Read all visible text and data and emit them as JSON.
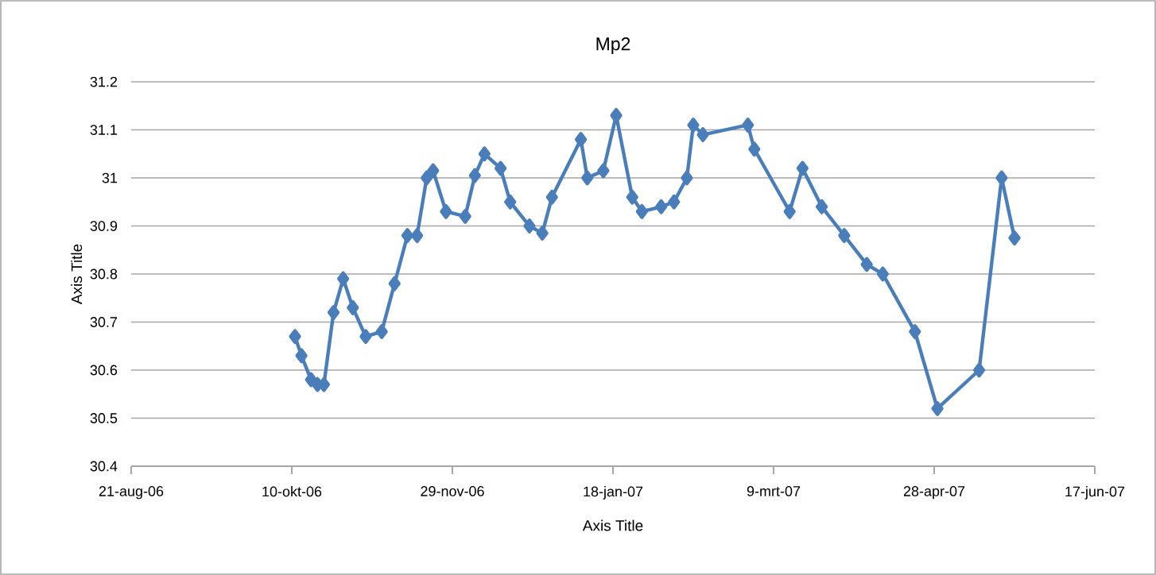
{
  "chart_data": {
    "type": "line",
    "title": "Mp2",
    "xlabel": "Axis Title",
    "ylabel": "Axis Title",
    "x": [
      "2006-10-11",
      "2006-10-13",
      "2006-10-16",
      "2006-10-18",
      "2006-10-20",
      "2006-10-23",
      "2006-10-26",
      "2006-10-29",
      "2006-11-02",
      "2006-11-07",
      "2006-11-11",
      "2006-11-15",
      "2006-11-18",
      "2006-11-21",
      "2006-11-23",
      "2006-11-27",
      "2006-12-03",
      "2006-12-06",
      "2006-12-09",
      "2006-12-14",
      "2006-12-17",
      "2006-12-23",
      "2006-12-27",
      "2006-12-30",
      "2007-01-08",
      "2007-01-10",
      "2007-01-15",
      "2007-01-19",
      "2007-01-24",
      "2007-01-27",
      "2007-02-02",
      "2007-02-06",
      "2007-02-10",
      "2007-02-12",
      "2007-02-15",
      "2007-03-01",
      "2007-03-03",
      "2007-03-14",
      "2007-03-18",
      "2007-03-24",
      "2007-03-31",
      "2007-04-07",
      "2007-04-12",
      "2007-04-22",
      "2007-04-29",
      "2007-05-12",
      "2007-05-19",
      "2007-05-23"
    ],
    "values": [
      30.67,
      30.63,
      30.58,
      30.57,
      30.57,
      30.72,
      30.79,
      30.73,
      30.67,
      30.68,
      30.78,
      30.88,
      30.88,
      31.0,
      31.015,
      30.93,
      30.92,
      31.005,
      31.05,
      31.02,
      30.95,
      30.9,
      30.885,
      30.96,
      31.08,
      31.0,
      31.015,
      31.13,
      30.96,
      30.93,
      30.94,
      30.95,
      31.0,
      31.11,
      31.09,
      31.11,
      31.06,
      30.93,
      31.02,
      30.94,
      30.88,
      30.82,
      30.8,
      30.68,
      30.52,
      30.6,
      31.0,
      30.875
    ],
    "color": "#4a7ebb",
    "marker": "diamond",
    "grid": "y",
    "xlim": [
      "2006-08-21",
      "2007-06-17"
    ],
    "xticks": [
      {
        "value": "2006-08-21",
        "label": "21-aug-06"
      },
      {
        "value": "2006-10-10",
        "label": "10-okt-06"
      },
      {
        "value": "2006-11-29",
        "label": "29-nov-06"
      },
      {
        "value": "2007-01-18",
        "label": "18-jan-07"
      },
      {
        "value": "2007-03-09",
        "label": "9-mrt-07"
      },
      {
        "value": "2007-04-28",
        "label": "28-apr-07"
      },
      {
        "value": "2007-06-17",
        "label": "17-jun-07"
      }
    ],
    "ylim": [
      30.4,
      31.2
    ],
    "yticks": [
      30.4,
      30.5,
      30.6,
      30.7,
      30.8,
      30.9,
      31,
      31.1,
      31.2
    ]
  }
}
